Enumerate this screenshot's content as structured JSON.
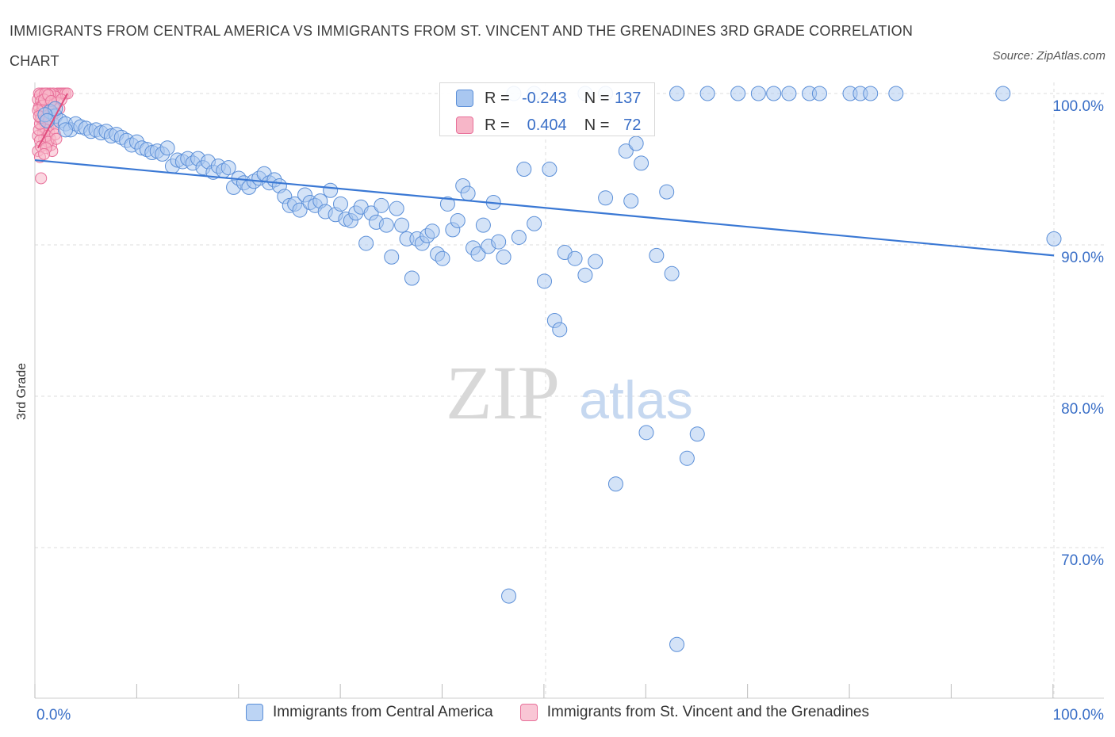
{
  "title": "IMMIGRANTS FROM CENTRAL AMERICA VS IMMIGRANTS FROM ST. VINCENT AND THE GRENADINES 3RD GRADE CORRELATION CHART",
  "source": "Source: ZipAtlas.com",
  "watermark": {
    "zip": "ZIP",
    "atlas": "atlas"
  },
  "stats": {
    "r_label": "R =",
    "n_label": "N =",
    "series1": {
      "r": "-0.243",
      "n": "137"
    },
    "series2": {
      "r": "0.404",
      "n": "72"
    }
  },
  "colors": {
    "series1_fill": "#a9c7f0",
    "series1_stroke": "#5b8fd8",
    "series1_line": "#3a78d4",
    "series2_fill": "#f7b6c8",
    "series2_stroke": "#e8709a",
    "series2_line": "#e04c7d",
    "axis_text": "#3a6fc7",
    "grid": "#dddddd"
  },
  "chart_data": {
    "type": "scatter",
    "title": "IMMIGRANTS FROM CENTRAL AMERICA VS IMMIGRANTS FROM ST. VINCENT AND THE GRENADINES 3RD GRADE CORRELATION CHART",
    "xlabel": "",
    "ylabel": "3rd Grade",
    "xlim": [
      0,
      100
    ],
    "ylim": [
      60,
      100
    ],
    "x_tick_labels": [
      "0.0%",
      "100.0%"
    ],
    "y_ticks": [
      100,
      90,
      80,
      70
    ],
    "y_tick_labels": [
      "100.0%",
      "90.0%",
      "80.0%",
      "70.0%"
    ],
    "grid": true,
    "legend": "bottom",
    "series": [
      {
        "name": "Immigrants from Central America",
        "trend": [
          [
            0,
            95.6
          ],
          [
            100,
            89.3
          ]
        ],
        "points": [
          [
            1.5,
            98.8
          ],
          [
            2.0,
            98.5
          ],
          [
            2.5,
            98.2
          ],
          [
            3.0,
            98.0
          ],
          [
            3.5,
            97.6
          ],
          [
            4.0,
            98.0
          ],
          [
            4.5,
            97.8
          ],
          [
            5.0,
            97.7
          ],
          [
            5.5,
            97.5
          ],
          [
            6.0,
            97.6
          ],
          [
            6.5,
            97.4
          ],
          [
            7.0,
            97.5
          ],
          [
            7.5,
            97.2
          ],
          [
            8.0,
            97.3
          ],
          [
            8.5,
            97.1
          ],
          [
            9.0,
            96.9
          ],
          [
            9.5,
            96.6
          ],
          [
            10.0,
            96.8
          ],
          [
            10.5,
            96.4
          ],
          [
            11.0,
            96.3
          ],
          [
            11.5,
            96.1
          ],
          [
            12.0,
            96.2
          ],
          [
            12.5,
            96.0
          ],
          [
            13.0,
            96.4
          ],
          [
            13.5,
            95.2
          ],
          [
            14.0,
            95.6
          ],
          [
            14.5,
            95.5
          ],
          [
            15.0,
            95.7
          ],
          [
            15.5,
            95.4
          ],
          [
            16.0,
            95.7
          ],
          [
            16.5,
            95.1
          ],
          [
            17.0,
            95.5
          ],
          [
            17.5,
            94.8
          ],
          [
            18.0,
            95.2
          ],
          [
            18.5,
            94.9
          ],
          [
            19.0,
            95.1
          ],
          [
            19.5,
            93.8
          ],
          [
            20.0,
            94.4
          ],
          [
            20.5,
            94.1
          ],
          [
            21.0,
            93.8
          ],
          [
            21.5,
            94.2
          ],
          [
            22.0,
            94.4
          ],
          [
            22.5,
            94.7
          ],
          [
            23.0,
            94.1
          ],
          [
            23.5,
            94.3
          ],
          [
            24.0,
            93.9
          ],
          [
            24.5,
            93.2
          ],
          [
            25.0,
            92.6
          ],
          [
            25.5,
            92.7
          ],
          [
            26.0,
            92.3
          ],
          [
            26.5,
            93.3
          ],
          [
            27.0,
            92.8
          ],
          [
            27.5,
            92.6
          ],
          [
            28.0,
            92.9
          ],
          [
            28.5,
            92.2
          ],
          [
            29.0,
            93.6
          ],
          [
            29.5,
            92.0
          ],
          [
            30.0,
            92.7
          ],
          [
            30.5,
            91.7
          ],
          [
            31.0,
            91.6
          ],
          [
            31.5,
            92.1
          ],
          [
            32.0,
            92.5
          ],
          [
            32.5,
            90.1
          ],
          [
            33.0,
            92.1
          ],
          [
            33.5,
            91.5
          ],
          [
            34.0,
            92.6
          ],
          [
            34.5,
            91.3
          ],
          [
            35.0,
            89.2
          ],
          [
            35.5,
            92.4
          ],
          [
            36.0,
            91.3
          ],
          [
            36.5,
            90.4
          ],
          [
            37.0,
            87.8
          ],
          [
            37.5,
            90.4
          ],
          [
            38.0,
            90.1
          ],
          [
            38.5,
            90.6
          ],
          [
            39.0,
            90.9
          ],
          [
            39.5,
            89.4
          ],
          [
            40.0,
            89.1
          ],
          [
            40.5,
            92.7
          ],
          [
            41.0,
            91.0
          ],
          [
            41.5,
            91.6
          ],
          [
            42.0,
            93.9
          ],
          [
            42.5,
            93.4
          ],
          [
            43.0,
            89.8
          ],
          [
            43.5,
            89.4
          ],
          [
            44.0,
            91.3
          ],
          [
            44.5,
            89.9
          ],
          [
            45.0,
            92.8
          ],
          [
            45.5,
            90.2
          ],
          [
            46.0,
            89.2
          ],
          [
            46.5,
            66.8
          ],
          [
            47.5,
            90.5
          ],
          [
            48.0,
            95.0
          ],
          [
            49.0,
            91.4
          ],
          [
            50.0,
            87.6
          ],
          [
            50.5,
            95.0
          ],
          [
            51.0,
            85.0
          ],
          [
            51.5,
            84.4
          ],
          [
            52.0,
            89.5
          ],
          [
            53.0,
            89.1
          ],
          [
            54.0,
            88.0
          ],
          [
            55.0,
            88.9
          ],
          [
            56.0,
            93.1
          ],
          [
            57.0,
            74.2
          ],
          [
            58.0,
            96.2
          ],
          [
            59.0,
            96.7
          ],
          [
            59.5,
            95.4
          ],
          [
            58.5,
            92.9
          ],
          [
            60.0,
            77.6
          ],
          [
            61.0,
            89.3
          ],
          [
            62.0,
            93.5
          ],
          [
            62.5,
            88.1
          ],
          [
            63.0,
            63.6
          ],
          [
            64.0,
            75.9
          ],
          [
            65.0,
            77.5
          ],
          [
            47.0,
            100.0
          ],
          [
            49.0,
            100.0
          ],
          [
            54.0,
            100.0
          ],
          [
            56.0,
            100.0
          ],
          [
            63.0,
            100.0
          ],
          [
            66.0,
            100.0
          ],
          [
            69.0,
            100.0
          ],
          [
            71.0,
            100.0
          ],
          [
            72.5,
            100.0
          ],
          [
            74.0,
            100.0
          ],
          [
            76.0,
            100.0
          ],
          [
            77.0,
            100.0
          ],
          [
            80.0,
            100.0
          ],
          [
            81.0,
            100.0
          ],
          [
            82.0,
            100.0
          ],
          [
            84.5,
            100.0
          ],
          [
            95.0,
            100.0
          ],
          [
            100.0,
            90.4
          ],
          [
            2.0,
            99.0
          ],
          [
            3.0,
            97.6
          ],
          [
            1.0,
            98.6
          ],
          [
            1.2,
            98.2
          ]
        ]
      },
      {
        "name": "Immigrants from St. Vincent and the Grenadines",
        "trend": [
          [
            0.3,
            96.4
          ],
          [
            3.2,
            100.0
          ]
        ],
        "points": [
          [
            0.3,
            99.6
          ],
          [
            0.4,
            99.1
          ],
          [
            0.5,
            98.7
          ],
          [
            0.6,
            98.3
          ],
          [
            0.7,
            97.8
          ],
          [
            0.8,
            97.4
          ],
          [
            0.9,
            97.0
          ],
          [
            1.0,
            96.6
          ],
          [
            0.3,
            96.2
          ],
          [
            0.5,
            95.8
          ],
          [
            0.6,
            94.4
          ],
          [
            0.7,
            100.0
          ],
          [
            0.8,
            99.8
          ],
          [
            0.9,
            99.4
          ],
          [
            1.0,
            99.0
          ],
          [
            1.1,
            98.6
          ],
          [
            1.2,
            98.2
          ],
          [
            1.3,
            97.8
          ],
          [
            1.4,
            97.4
          ],
          [
            1.5,
            97.0
          ],
          [
            1.6,
            96.6
          ],
          [
            1.7,
            96.2
          ],
          [
            0.4,
            100.0
          ],
          [
            0.5,
            99.9
          ],
          [
            0.6,
            99.5
          ],
          [
            0.7,
            99.2
          ],
          [
            0.8,
            98.9
          ],
          [
            0.9,
            98.4
          ],
          [
            1.0,
            98.0
          ],
          [
            1.1,
            97.6
          ],
          [
            1.2,
            97.2
          ],
          [
            1.3,
            96.8
          ],
          [
            1.4,
            99.7
          ],
          [
            1.5,
            99.3
          ],
          [
            1.6,
            98.9
          ],
          [
            1.7,
            98.5
          ],
          [
            1.8,
            98.1
          ],
          [
            1.9,
            97.7
          ],
          [
            2.0,
            97.3
          ],
          [
            2.1,
            97.0
          ],
          [
            2.2,
            100.0
          ],
          [
            2.4,
            100.0
          ],
          [
            2.6,
            100.0
          ],
          [
            2.8,
            100.0
          ],
          [
            3.0,
            100.0
          ],
          [
            3.2,
            100.0
          ],
          [
            1.8,
            100.0
          ],
          [
            2.0,
            99.8
          ],
          [
            2.2,
            99.4
          ],
          [
            1.5,
            100.0
          ],
          [
            1.2,
            100.0
          ],
          [
            1.0,
            100.0
          ],
          [
            0.3,
            97.2
          ],
          [
            0.4,
            97.6
          ],
          [
            0.5,
            98.0
          ],
          [
            0.6,
            98.4
          ],
          [
            0.7,
            98.8
          ],
          [
            0.8,
            99.2
          ],
          [
            0.9,
            99.6
          ],
          [
            0.3,
            98.9
          ],
          [
            0.4,
            98.5
          ],
          [
            0.5,
            96.9
          ],
          [
            0.6,
            96.5
          ],
          [
            2.4,
            99.0
          ],
          [
            2.6,
            99.6
          ],
          [
            1.9,
            99.1
          ],
          [
            1.3,
            99.9
          ],
          [
            1.1,
            96.4
          ],
          [
            0.9,
            96.0
          ],
          [
            1.6,
            99.5
          ],
          [
            2.0,
            98.7
          ],
          [
            1.4,
            98.3
          ]
        ]
      }
    ]
  }
}
